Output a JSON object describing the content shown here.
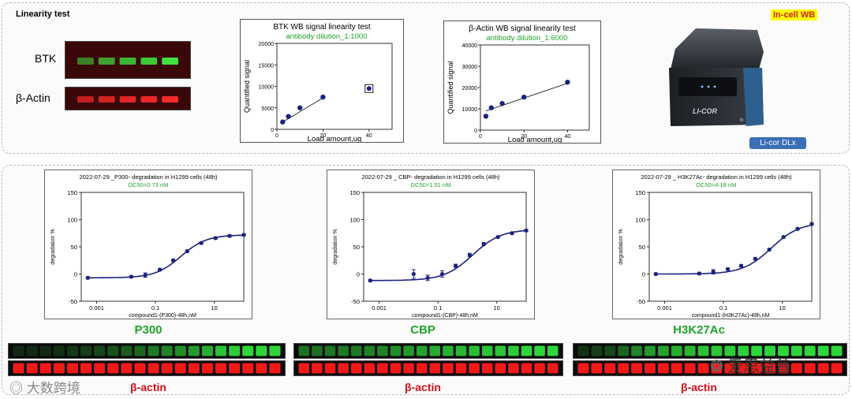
{
  "linearity": {
    "title": "Linearity test",
    "blot_labels": [
      "BTK",
      "β-Actin"
    ],
    "btk_band_intensity": [
      0.55,
      0.7,
      0.8,
      0.88,
      1.0
    ],
    "actin_band_intensity": [
      0.7,
      0.78,
      0.85,
      0.9,
      1.0
    ]
  },
  "instrument": {
    "tag": "In-cell WB",
    "button_label": "Li-cor DLx",
    "brand": "LI-COR"
  },
  "chart_data": [
    {
      "type": "scatter",
      "title": "BTK  WB  signal  linearity  test",
      "subtitle": "antibody  dilution_1:1000",
      "xlabel": "Load  amount,ug",
      "ylabel": "Quantified  signal",
      "xlim": [
        0,
        50
      ],
      "ylim": [
        0,
        20000
      ],
      "xticks": [
        0,
        20,
        40
      ],
      "yticks": [
        0,
        5000,
        10000,
        15000,
        20000
      ],
      "x": [
        2.5,
        5,
        10,
        20
      ],
      "y": [
        1700,
        3000,
        5000,
        7500
      ],
      "outlier": {
        "x": 40,
        "y": 9500
      },
      "fit_x": [
        2.5,
        20
      ],
      "fit_y": [
        1700,
        7300
      ]
    },
    {
      "type": "scatter",
      "title": "β-Actin  WB  signal  linearity  test",
      "subtitle": "antibody  dilution_1:6000",
      "xlabel": "Load  amount,ug",
      "ylabel": "Quantified  signal",
      "xlim": [
        0,
        50
      ],
      "ylim": [
        0,
        40000
      ],
      "xticks": [
        0,
        20,
        40
      ],
      "yticks": [
        0,
        10000,
        20000,
        30000,
        40000
      ],
      "x": [
        2.5,
        5,
        10,
        20,
        40
      ],
      "y": [
        6500,
        10500,
        12500,
        15500,
        22500
      ],
      "fit_x": [
        2.5,
        40
      ],
      "fit_y": [
        9000,
        22000
      ]
    },
    {
      "type": "line",
      "title": "2022-07-29 _P300- degradation in  H1299 cells (48h)",
      "subtitle": "DC50=0.73  nM",
      "xlabel": "compound1-(P300)-48h,nM",
      "ylabel": "degradation %",
      "xscale": "log",
      "xlim": [
        0.0003,
        100
      ],
      "ylim": [
        -50,
        150
      ],
      "xticks": [
        0.001,
        0.1,
        10
      ],
      "xticklabels": [
        "0.001",
        "0.1",
        "10"
      ],
      "yticks": [
        -50,
        0,
        50,
        100,
        150
      ],
      "dc50": 0.73,
      "top": 72,
      "bottom": -7,
      "hill": 1.0,
      "points_x": [
        0.0005,
        0.015,
        0.045,
        0.14,
        0.4,
        1.2,
        3.6,
        11,
        33,
        100
      ],
      "points_y": [
        -7,
        -5,
        -2,
        8,
        25,
        42,
        57,
        66,
        70,
        72
      ],
      "err": [
        2,
        2,
        4,
        2,
        2,
        2,
        2,
        2,
        2,
        2
      ]
    },
    {
      "type": "line",
      "title": "2022-07-29 _  CBP- degradation in  H1299 cells (48h)",
      "subtitle": "DC50=1.51  nM",
      "xlabel": "compound1-(CBP)-48h,nM",
      "ylabel": "degradation %",
      "xscale": "log",
      "xlim": [
        0.0003,
        100
      ],
      "ylim": [
        -50,
        150
      ],
      "xticks": [
        0.001,
        0.1,
        10
      ],
      "xticklabels": [
        "0.001",
        "0.1",
        "10"
      ],
      "yticks": [
        -50,
        0,
        50,
        100,
        150
      ],
      "dc50": 1.51,
      "top": 82,
      "bottom": -12,
      "hill": 0.9,
      "points_x": [
        0.0005,
        0.015,
        0.045,
        0.14,
        0.4,
        1.2,
        3.6,
        11,
        33,
        100
      ],
      "points_y": [
        -12,
        0,
        -7,
        0,
        15,
        35,
        55,
        68,
        75,
        80
      ],
      "err": [
        2,
        8,
        5,
        6,
        3,
        3,
        3,
        2,
        2,
        2
      ]
    },
    {
      "type": "line",
      "title": "2022-07-29 _  H3K27Ac- degradation in  H1299 cells (48h)",
      "subtitle": "DC50=4.18  nM",
      "xlabel": "compound1-(H3K27Ac)-48h,nM",
      "ylabel": "degradation %",
      "xscale": "log",
      "xlim": [
        0.0003,
        100
      ],
      "ylim": [
        -50,
        150
      ],
      "xticks": [
        0.001,
        0.1,
        10
      ],
      "xticklabels": [
        "0.001",
        "0.1",
        "10"
      ],
      "yticks": [
        -50,
        0,
        50,
        100,
        150
      ],
      "dc50": 4.18,
      "top": 95,
      "bottom": 0,
      "hill": 0.9,
      "points_x": [
        0.0005,
        0.015,
        0.045,
        0.14,
        0.4,
        1.2,
        3.6,
        11,
        33,
        100
      ],
      "points_y": [
        0,
        1,
        4,
        9,
        15,
        28,
        45,
        68,
        83,
        92
      ],
      "err": [
        2,
        2,
        4,
        2,
        2,
        2,
        2,
        2,
        2,
        2
      ]
    }
  ],
  "assays": [
    {
      "protein": "P300",
      "protein_color": "#1fa32a",
      "actin_label": "β-actin",
      "green_intensity": [
        0.15,
        0.16,
        0.15,
        0.18,
        0.22,
        0.25,
        0.3,
        0.35,
        0.4,
        0.45,
        0.55,
        0.6,
        0.65,
        0.7,
        0.8,
        0.9,
        0.95,
        1.0,
        1.0,
        1.0
      ],
      "red_intensity": [
        0.95,
        0.95,
        0.95,
        0.95,
        0.95,
        0.95,
        0.95,
        0.95,
        0.95,
        0.95,
        0.95,
        0.95,
        0.95,
        0.95,
        0.95,
        0.95,
        0.95,
        0.95,
        0.95,
        0.95
      ]
    },
    {
      "protein": "CBP",
      "protein_color": "#1fa32a",
      "actin_label": "β-actin",
      "green_intensity": [
        0.5,
        0.5,
        0.52,
        0.55,
        0.55,
        0.58,
        0.6,
        0.65,
        0.7,
        0.75,
        0.8,
        0.82,
        0.85,
        0.88,
        0.9,
        0.92,
        0.95,
        1.0,
        1.0,
        1.0
      ],
      "red_intensity": [
        0.95,
        0.95,
        0.95,
        0.95,
        0.95,
        0.95,
        0.95,
        0.95,
        0.95,
        0.95,
        0.95,
        0.95,
        0.95,
        0.95,
        0.95,
        0.95,
        0.95,
        0.95,
        0.95,
        0.95
      ]
    },
    {
      "protein": "H3K27Ac",
      "protein_color": "#1fa32a",
      "actin_label": "β-actin",
      "green_intensity": [
        0.2,
        0.25,
        0.3,
        0.45,
        0.6,
        0.7,
        0.75,
        0.8,
        0.85,
        0.9,
        0.92,
        0.95,
        0.97,
        1.0,
        1.0,
        1.0,
        1.0,
        1.0,
        1.0,
        1.0
      ],
      "red_intensity": [
        0.95,
        0.95,
        0.95,
        0.95,
        0.95,
        0.95,
        0.95,
        0.95,
        0.95,
        0.95,
        0.95,
        0.95,
        0.95,
        0.95,
        0.95,
        0.95,
        0.95,
        0.95,
        0.95,
        0.95
      ]
    }
  ],
  "watermarks": {
    "left": "大数跨境",
    "right": "爱思益普"
  },
  "colors": {
    "accent_green": "#1fa32a",
    "curve_blue": "#1a237e",
    "actin_red": "#d0101a"
  }
}
